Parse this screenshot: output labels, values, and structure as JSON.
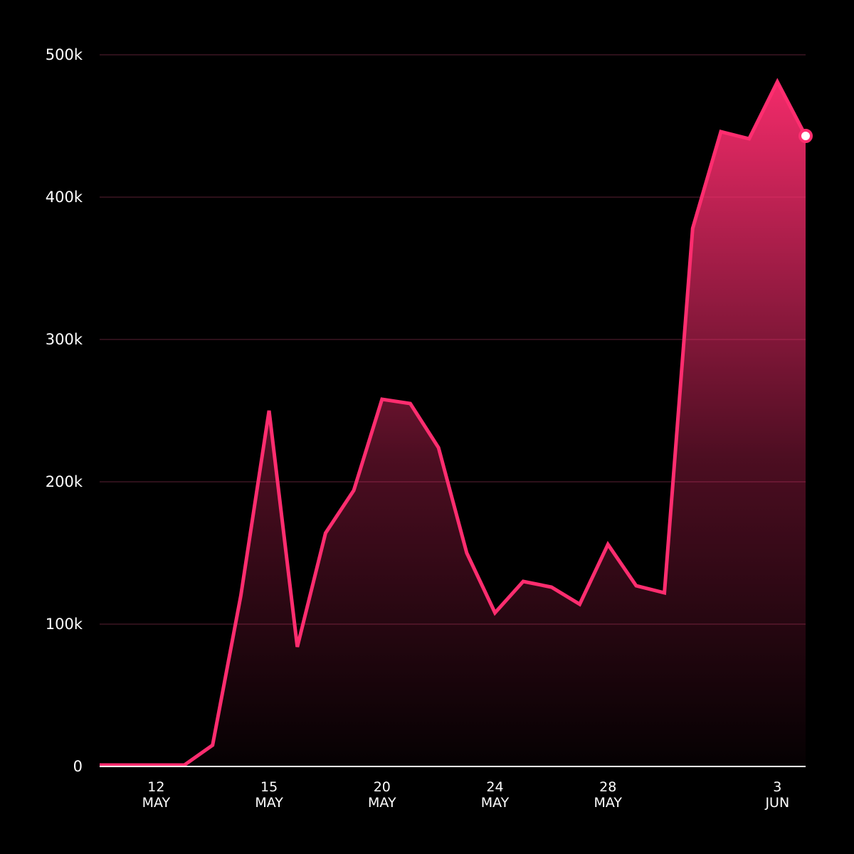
{
  "chart_data": {
    "type": "area",
    "title": "",
    "xlabel": "",
    "ylabel": "",
    "ylim": [
      0,
      500000
    ],
    "y_ticks": [
      {
        "value": 0,
        "label": "0"
      },
      {
        "value": 100000,
        "label": "100k"
      },
      {
        "value": 200000,
        "label": "200k"
      },
      {
        "value": 300000,
        "label": "300k"
      },
      {
        "value": 400000,
        "label": "400k"
      },
      {
        "value": 500000,
        "label": "500k"
      }
    ],
    "x_ticks": [
      {
        "index": 2,
        "line1": "12",
        "line2": "MAY"
      },
      {
        "index": 6,
        "line1": "15",
        "line2": "MAY"
      },
      {
        "index": 10,
        "line1": "20",
        "line2": "MAY"
      },
      {
        "index": 14,
        "line1": "24",
        "line2": "MAY"
      },
      {
        "index": 18,
        "line1": "28",
        "line2": "MAY"
      },
      {
        "index": 24,
        "line1": "3",
        "line2": "JUN"
      }
    ],
    "grid": true,
    "legend": "none",
    "series": [
      {
        "values": [
          1000,
          1000,
          1000,
          1000,
          15000,
          120000,
          250000,
          84000,
          164000,
          194000,
          258000,
          255000,
          224000,
          150000,
          108000,
          130000,
          126000,
          114000,
          156000,
          127000,
          122000,
          378000,
          446000,
          441000,
          481000,
          443000
        ]
      }
    ],
    "last_point_marker": true,
    "colors": {
      "background": "#000000",
      "line": "#ff2d6f",
      "fill_top": "#ff2d6f",
      "grid": "#5a1f33",
      "axis": "#ffffff",
      "text": "#ffffff",
      "marker_fill": "#ffffff"
    }
  }
}
